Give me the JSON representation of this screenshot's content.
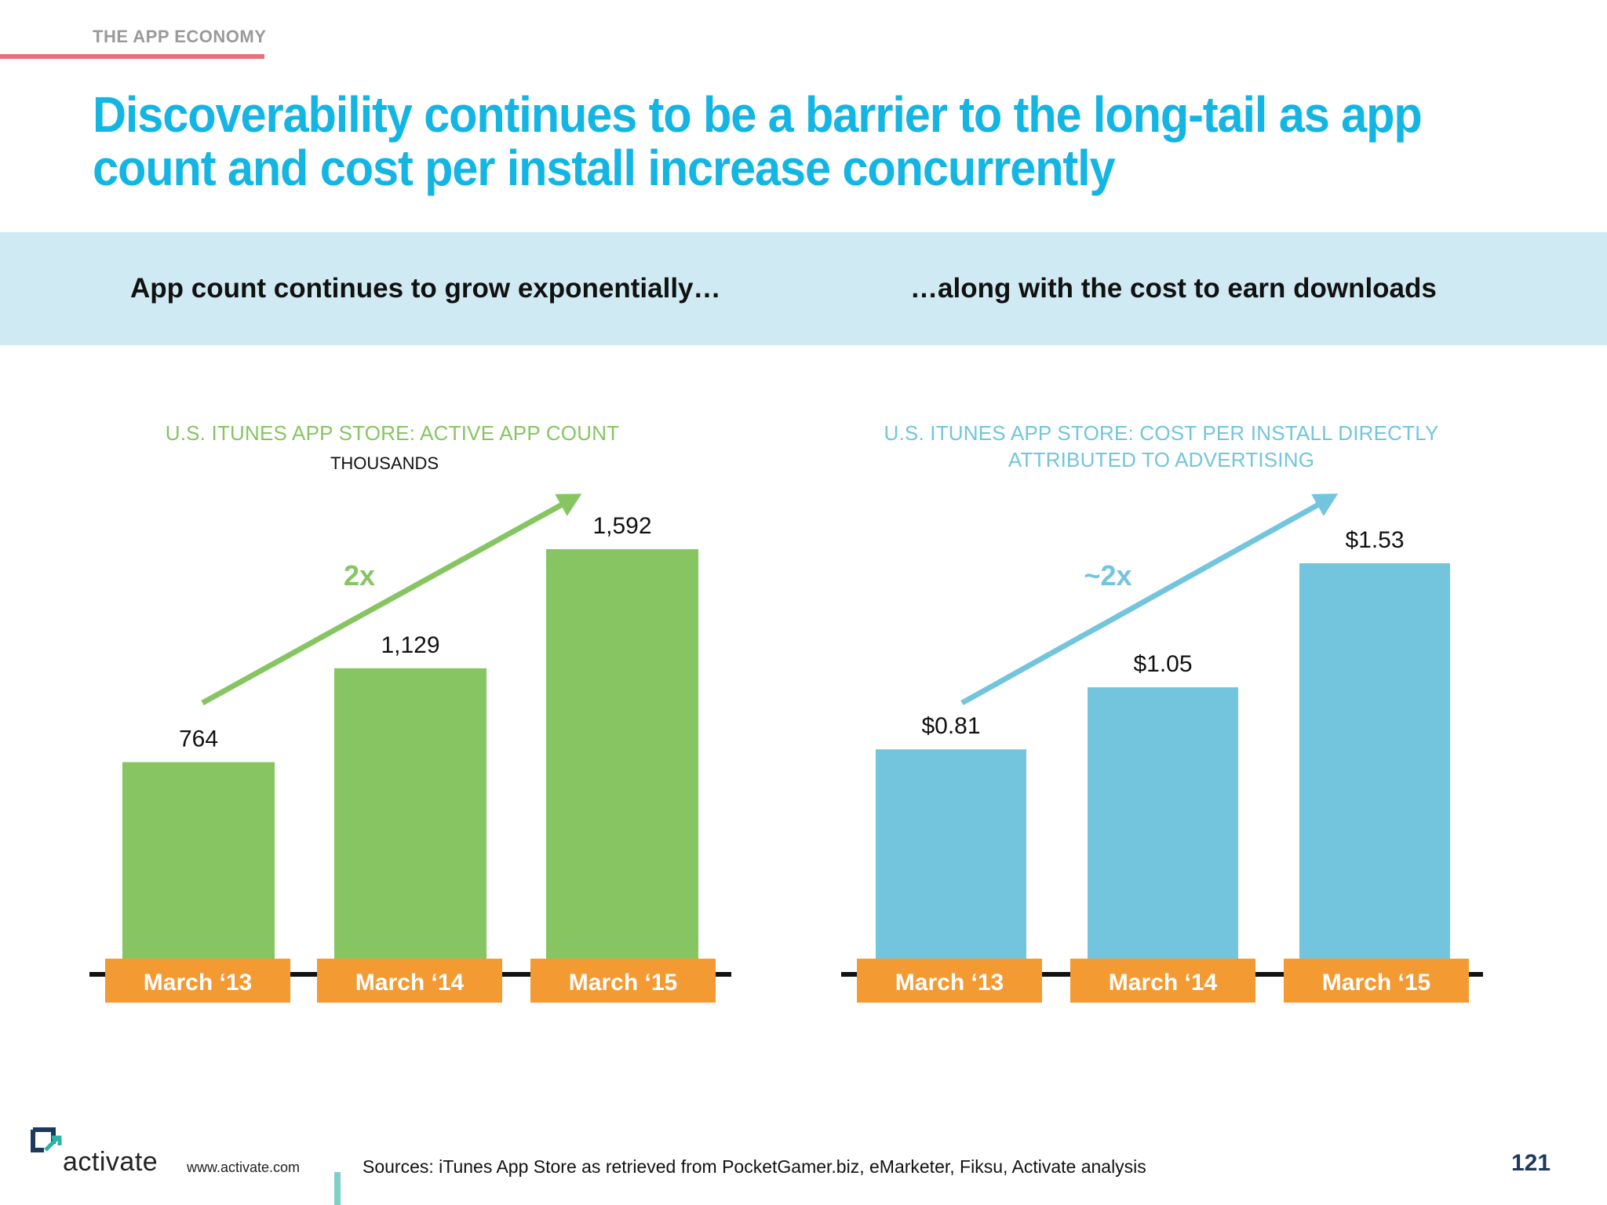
{
  "header": {
    "section": "THE APP ECONOMY",
    "title_line1": "Discoverability continues to be a barrier to the long-tail as app",
    "title_line2": "count and cost per install increase concurrently"
  },
  "band": {
    "left": "App count continues to grow exponentially…",
    "right": "…along with the cost to earn downloads"
  },
  "colors": {
    "accent_title": "#13b5e3",
    "green": "#86c562",
    "blue": "#72c5dd",
    "orange": "#f39a33",
    "rule": "#e8707a"
  },
  "chart_data": [
    {
      "type": "bar",
      "title": "U.S. ITUNES APP STORE: ACTIVE APP COUNT",
      "subtitle": "THOUSANDS",
      "categories": [
        "March ‘13",
        "March ‘14",
        "March ‘15"
      ],
      "values": [
        764,
        1129,
        1592
      ],
      "labels": [
        "764",
        "1,129",
        "1,592"
      ],
      "annotation": "2x",
      "ylim": [
        0,
        1700
      ],
      "color": "#86c562"
    },
    {
      "type": "bar",
      "title": "U.S. ITUNES APP STORE: COST PER INSTALL DIRECTLY",
      "title_line2": "ATTRIBUTED TO ADVERTISING",
      "categories": [
        "March ‘13",
        "March ‘14",
        "March ‘15"
      ],
      "values": [
        0.81,
        1.05,
        1.53
      ],
      "labels": [
        "$0.81",
        "$1.05",
        "$1.53"
      ],
      "annotation": "~2x",
      "ylim": [
        0,
        1.6
      ],
      "color": "#72c5dd"
    }
  ],
  "footer": {
    "brand": "activate",
    "url": "www.activate.com",
    "sources": "Sources: iTunes App Store as retrieved from PocketGamer.biz, eMarketer, Fiksu, Activate analysis",
    "page": "121"
  }
}
